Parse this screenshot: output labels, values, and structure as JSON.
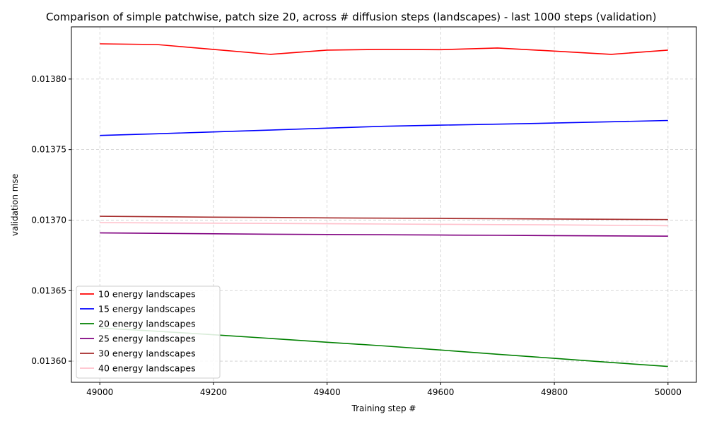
{
  "chart_data": {
    "type": "line",
    "title": "Comparison of simple patchwise, patch size 20, across # diffusion steps (landscapes) - last 1000 steps (validation)",
    "xlabel": "Training step #",
    "ylabel": "validation mse",
    "x": [
      49000,
      49100,
      49200,
      49300,
      49400,
      49500,
      49600,
      49700,
      49800,
      49900,
      50000
    ],
    "xlim": [
      48950,
      50050
    ],
    "ylim": [
      0.013585,
      0.013837
    ],
    "xticks": [
      49000,
      49200,
      49400,
      49600,
      49800,
      50000
    ],
    "xtick_labels": [
      "49000",
      "49200",
      "49400",
      "49600",
      "49800",
      "50000"
    ],
    "yticks": [
      0.0136,
      0.01365,
      0.0137,
      0.01375,
      0.0138
    ],
    "ytick_labels": [
      "0.01360",
      "0.01365",
      "0.01370",
      "0.01375",
      "0.01380"
    ],
    "grid": true,
    "legend_position": "lower-left",
    "series": [
      {
        "name": "10 energy landscapes",
        "color": "#ff0000",
        "values": [
          0.013825,
          0.0138245,
          0.013821,
          0.0138175,
          0.0138205,
          0.013821,
          0.0138208,
          0.013822,
          0.0138198,
          0.0138175,
          0.0138205
        ]
      },
      {
        "name": "15 energy landscapes",
        "color": "#0000ff",
        "values": [
          0.01376,
          0.0137612,
          0.0137625,
          0.0137638,
          0.0137652,
          0.0137665,
          0.0137673,
          0.013768,
          0.0137688,
          0.0137697,
          0.0137706
        ]
      },
      {
        "name": "20 energy landscapes",
        "color": "#008000",
        "values": [
          0.0136235,
          0.0136212,
          0.0136187,
          0.0136161,
          0.0136134,
          0.0136108,
          0.0136079,
          0.0136049,
          0.013602,
          0.0135991,
          0.0135962
        ]
      },
      {
        "name": "25 energy landscapes",
        "color": "#800080",
        "values": [
          0.0136909,
          0.0136906,
          0.0136903,
          0.01369,
          0.0136898,
          0.0136896,
          0.0136894,
          0.0136892,
          0.013689,
          0.0136888,
          0.0136886
        ]
      },
      {
        "name": "30 energy landscapes",
        "color": "#a52a2a",
        "values": [
          0.0137027,
          0.0137024,
          0.0137021,
          0.0137019,
          0.0137016,
          0.0137014,
          0.0137012,
          0.013701,
          0.0137008,
          0.0137006,
          0.0137004
        ]
      },
      {
        "name": "40 energy landscapes",
        "color": "#ffc0cb",
        "values": [
          0.0136982,
          0.013698,
          0.0136978,
          0.0136976,
          0.0136974,
          0.0136972,
          0.013697,
          0.0136968,
          0.0136966,
          0.0136963,
          0.013696
        ]
      }
    ]
  }
}
